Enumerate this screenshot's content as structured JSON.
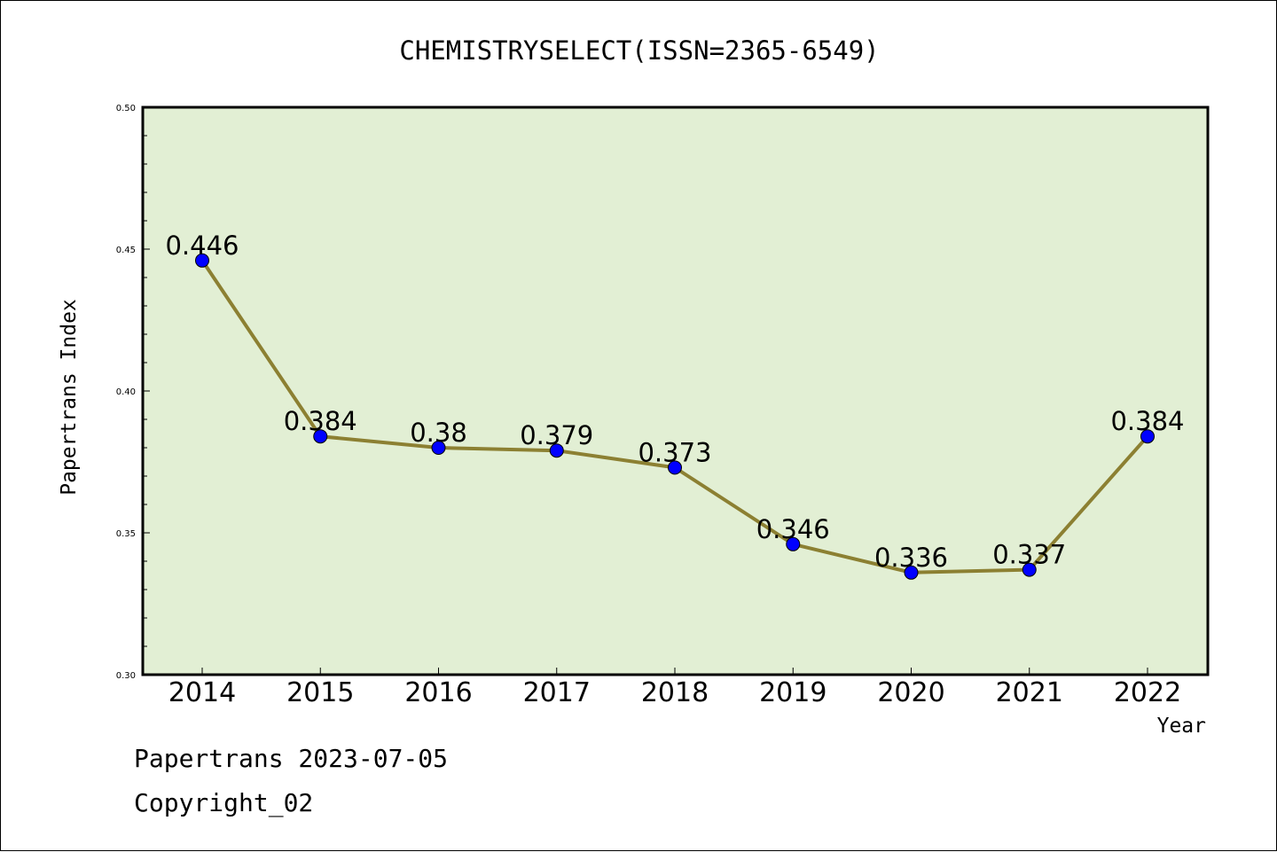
{
  "chart_data": {
    "type": "line",
    "title": "CHEMISTRYSELECT(ISSN=2365-6549)",
    "xlabel": "Year",
    "ylabel": "Papertrans Index",
    "categories": [
      "2014",
      "2015",
      "2016",
      "2017",
      "2018",
      "2019",
      "2020",
      "2021",
      "2022"
    ],
    "values": [
      0.446,
      0.384,
      0.38,
      0.379,
      0.373,
      0.346,
      0.336,
      0.337,
      0.384
    ],
    "data_labels": [
      "0.446",
      "0.384",
      "0.38",
      "0.379",
      "0.373",
      "0.346",
      "0.336",
      "0.337",
      "0.384"
    ],
    "yticks": [
      "0.30",
      "0.35",
      "0.40",
      "0.45",
      "0.50"
    ],
    "ylim": [
      0.3,
      0.5
    ],
    "grid": false,
    "colors": {
      "plot_background": "#e2efd4",
      "line": "#8c8032",
      "marker": "#0000ff"
    }
  },
  "footer": {
    "line1": "Papertrans 2023-07-05",
    "line2": "Copyright_02"
  }
}
